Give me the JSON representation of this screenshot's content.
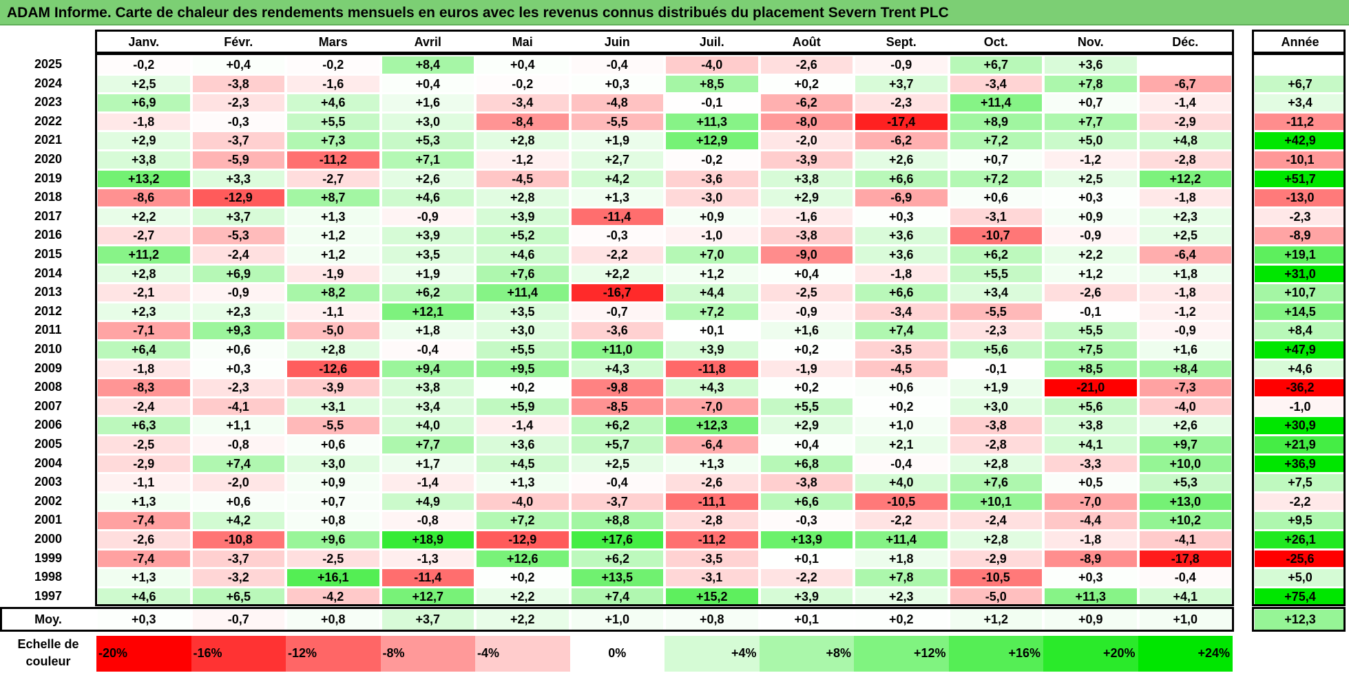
{
  "title": "ADAM Informe. Carte de chaleur des rendements mensuels en euros avec les revenus connus distribués du placement Severn Trent PLC",
  "colors": {
    "title_bg": "#7ccf74",
    "neg_max": "#ff0000",
    "pos_max": "#00e600",
    "neutral": "#ffffff"
  },
  "chart_data": {
    "type": "heatmap",
    "title": "ADAM Informe. Carte de chaleur des rendements mensuels en euros avec les revenus connus distribués du placement Severn Trent PLC",
    "columns": [
      "Janv.",
      "Févr.",
      "Mars",
      "Avril",
      "Mai",
      "Juin",
      "Juil.",
      "Août",
      "Sept.",
      "Oct.",
      "Nov.",
      "Déc."
    ],
    "year_header": "Année",
    "rows": [
      {
        "year": "2025",
        "values": [
          "-0,2",
          "+0,4",
          "-0,2",
          "+8,4",
          "+0,4",
          "-0,4",
          "-4,0",
          "-2,6",
          "-0,9",
          "+6,7",
          "+3,6",
          ""
        ],
        "annual": ""
      },
      {
        "year": "2024",
        "values": [
          "+2,5",
          "-3,8",
          "-1,6",
          "+0,4",
          "-0,2",
          "+0,3",
          "+8,5",
          "+0,2",
          "+3,7",
          "-3,4",
          "+7,8",
          "-6,7"
        ],
        "annual": "+6,7"
      },
      {
        "year": "2023",
        "values": [
          "+6,9",
          "-2,3",
          "+4,6",
          "+1,6",
          "-3,4",
          "-4,8",
          "-0,1",
          "-6,2",
          "-2,3",
          "+11,4",
          "+0,7",
          "-1,4"
        ],
        "annual": "+3,4"
      },
      {
        "year": "2022",
        "values": [
          "-1,8",
          "-0,3",
          "+5,5",
          "+3,0",
          "-8,4",
          "-5,5",
          "+11,3",
          "-8,0",
          "-17,4",
          "+8,9",
          "+7,7",
          "-2,9"
        ],
        "annual": "-11,2"
      },
      {
        "year": "2021",
        "values": [
          "+2,9",
          "-3,7",
          "+7,3",
          "+5,3",
          "+2,8",
          "+1,9",
          "+12,9",
          "-2,0",
          "-6,2",
          "+7,2",
          "+5,0",
          "+4,8"
        ],
        "annual": "+42,9"
      },
      {
        "year": "2020",
        "values": [
          "+3,8",
          "-5,9",
          "-11,2",
          "+7,1",
          "-1,2",
          "+2,7",
          "-0,2",
          "-3,9",
          "+2,6",
          "+0,7",
          "-1,2",
          "-2,8"
        ],
        "annual": "-10,1"
      },
      {
        "year": "2019",
        "values": [
          "+13,2",
          "+3,3",
          "-2,7",
          "+2,6",
          "-4,5",
          "+4,2",
          "-3,6",
          "+3,8",
          "+6,6",
          "+7,2",
          "+2,5",
          "+12,2"
        ],
        "annual": "+51,7"
      },
      {
        "year": "2018",
        "values": [
          "-8,6",
          "-12,9",
          "+8,7",
          "+4,6",
          "+2,8",
          "+1,3",
          "-3,0",
          "+2,9",
          "-6,9",
          "+0,6",
          "+0,3",
          "-1,8"
        ],
        "annual": "-13,0"
      },
      {
        "year": "2017",
        "values": [
          "+2,2",
          "+3,7",
          "+1,3",
          "-0,9",
          "+3,9",
          "-11,4",
          "+0,9",
          "-1,6",
          "+0,3",
          "-3,1",
          "+0,9",
          "+2,3"
        ],
        "annual": "-2,3"
      },
      {
        "year": "2016",
        "values": [
          "-2,7",
          "-5,3",
          "+1,2",
          "+3,9",
          "+5,2",
          "-0,3",
          "-1,0",
          "-3,8",
          "+3,6",
          "-10,7",
          "-0,9",
          "+2,5"
        ],
        "annual": "-8,9"
      },
      {
        "year": "2015",
        "values": [
          "+11,2",
          "-2,4",
          "+1,2",
          "+3,5",
          "+4,6",
          "-2,2",
          "+7,0",
          "-9,0",
          "+3,6",
          "+6,2",
          "+2,2",
          "-6,4"
        ],
        "annual": "+19,1"
      },
      {
        "year": "2014",
        "values": [
          "+2,8",
          "+6,9",
          "-1,9",
          "+1,9",
          "+7,6",
          "+2,2",
          "+1,2",
          "+0,4",
          "-1,8",
          "+5,5",
          "+1,2",
          "+1,8"
        ],
        "annual": "+31,0"
      },
      {
        "year": "2013",
        "values": [
          "-2,1",
          "-0,9",
          "+8,2",
          "+6,2",
          "+11,4",
          "-16,7",
          "+4,4",
          "-2,5",
          "+6,6",
          "+3,4",
          "-2,6",
          "-1,8"
        ],
        "annual": "+10,7"
      },
      {
        "year": "2012",
        "values": [
          "+2,3",
          "+2,3",
          "-1,1",
          "+12,1",
          "+3,5",
          "-0,7",
          "+7,2",
          "-0,9",
          "-3,4",
          "-5,5",
          "-0,1",
          "-1,2"
        ],
        "annual": "+14,5"
      },
      {
        "year": "2011",
        "values": [
          "-7,1",
          "+9,3",
          "-5,0",
          "+1,8",
          "+3,0",
          "-3,6",
          "+0,1",
          "+1,6",
          "+7,4",
          "-2,3",
          "+5,5",
          "-0,9"
        ],
        "annual": "+8,4"
      },
      {
        "year": "2010",
        "values": [
          "+6,4",
          "+0,6",
          "+2,8",
          "-0,4",
          "+5,5",
          "+11,0",
          "+3,9",
          "+0,2",
          "-3,5",
          "+5,6",
          "+7,5",
          "+1,6"
        ],
        "annual": "+47,9"
      },
      {
        "year": "2009",
        "values": [
          "-1,8",
          "+0,3",
          "-12,6",
          "+9,4",
          "+9,5",
          "+4,3",
          "-11,8",
          "-1,9",
          "-4,5",
          "-0,1",
          "+8,5",
          "+8,4"
        ],
        "annual": "+4,6"
      },
      {
        "year": "2008",
        "values": [
          "-8,3",
          "-2,3",
          "-3,9",
          "+3,8",
          "+0,2",
          "-9,8",
          "+4,3",
          "+0,2",
          "+0,6",
          "+1,9",
          "-21,0",
          "-7,3"
        ],
        "annual": "-36,2"
      },
      {
        "year": "2007",
        "values": [
          "-2,4",
          "-4,1",
          "+3,1",
          "+3,4",
          "+5,9",
          "-8,5",
          "-7,0",
          "+5,5",
          "+0,2",
          "+3,0",
          "+5,6",
          "-4,0"
        ],
        "annual": "-1,0"
      },
      {
        "year": "2006",
        "values": [
          "+6,3",
          "+1,1",
          "-5,5",
          "+4,0",
          "-1,4",
          "+6,2",
          "+12,3",
          "+2,9",
          "+1,0",
          "-3,8",
          "+3,8",
          "+2,6"
        ],
        "annual": "+30,9"
      },
      {
        "year": "2005",
        "values": [
          "-2,5",
          "-0,8",
          "+0,6",
          "+7,7",
          "+3,6",
          "+5,7",
          "-6,4",
          "+0,4",
          "+2,1",
          "-2,8",
          "+4,1",
          "+9,7"
        ],
        "annual": "+21,9"
      },
      {
        "year": "2004",
        "values": [
          "-2,9",
          "+7,4",
          "+3,0",
          "+1,7",
          "+4,5",
          "+2,5",
          "+1,3",
          "+6,8",
          "-0,4",
          "+2,8",
          "-3,3",
          "+10,0"
        ],
        "annual": "+36,9"
      },
      {
        "year": "2003",
        "values": [
          "-1,1",
          "-2,0",
          "+0,9",
          "-1,4",
          "+1,3",
          "-0,4",
          "-2,6",
          "-3,8",
          "+4,0",
          "+7,6",
          "+0,5",
          "+5,3"
        ],
        "annual": "+7,5"
      },
      {
        "year": "2002",
        "values": [
          "+1,3",
          "+0,6",
          "+0,7",
          "+4,9",
          "-4,0",
          "-3,7",
          "-11,1",
          "+6,6",
          "-10,5",
          "+10,1",
          "-7,0",
          "+13,0"
        ],
        "annual": "-2,2"
      },
      {
        "year": "2001",
        "values": [
          "-7,4",
          "+4,2",
          "+0,8",
          "-0,8",
          "+7,2",
          "+8,8",
          "-2,8",
          "-0,3",
          "-2,2",
          "-2,4",
          "-4,4",
          "+10,2"
        ],
        "annual": "+9,5"
      },
      {
        "year": "2000",
        "values": [
          "-2,6",
          "-10,8",
          "+9,6",
          "+18,9",
          "-12,9",
          "+17,6",
          "-11,2",
          "+13,9",
          "+11,4",
          "+2,8",
          "-1,8",
          "-4,1"
        ],
        "annual": "+26,1"
      },
      {
        "year": "1999",
        "values": [
          "-7,4",
          "-3,7",
          "-2,5",
          "-1,3",
          "+12,6",
          "+6,2",
          "-3,5",
          "+0,1",
          "+1,8",
          "-2,9",
          "-8,9",
          "-17,8"
        ],
        "annual": "-25,6"
      },
      {
        "year": "1998",
        "values": [
          "+1,3",
          "-3,2",
          "+16,1",
          "-11,4",
          "+0,2",
          "+13,5",
          "-3,1",
          "-2,2",
          "+7,8",
          "-10,5",
          "+0,3",
          "-0,4"
        ],
        "annual": "+5,0"
      },
      {
        "year": "1997",
        "values": [
          "+4,6",
          "+6,5",
          "-4,2",
          "+12,7",
          "+2,2",
          "+7,4",
          "+15,2",
          "+3,9",
          "+2,3",
          "-5,0",
          "+11,3",
          "+4,1"
        ],
        "annual": "+75,4"
      }
    ],
    "average": {
      "label": "Moy.",
      "values": [
        "+0,3",
        "-0,7",
        "+0,8",
        "+3,7",
        "+2,2",
        "+1,0",
        "+0,8",
        "+0,1",
        "+0,2",
        "+1,2",
        "+0,9",
        "+1,0"
      ],
      "annual": "+12,3"
    },
    "scale": {
      "label": "Echelle de couleur",
      "stops": [
        {
          "text": "-20%",
          "value": -20
        },
        {
          "text": "-16%",
          "value": -16
        },
        {
          "text": "-12%",
          "value": -12
        },
        {
          "text": "-8%",
          "value": -8
        },
        {
          "text": "-4%",
          "value": -4
        },
        {
          "text": "0%",
          "value": 0
        },
        {
          "text": "+4%",
          "value": 4
        },
        {
          "text": "+8%",
          "value": 8
        },
        {
          "text": "+12%",
          "value": 12
        },
        {
          "text": "+16%",
          "value": 16
        },
        {
          "text": "+20%",
          "value": 20
        },
        {
          "text": "+24%",
          "value": 24
        }
      ]
    }
  }
}
